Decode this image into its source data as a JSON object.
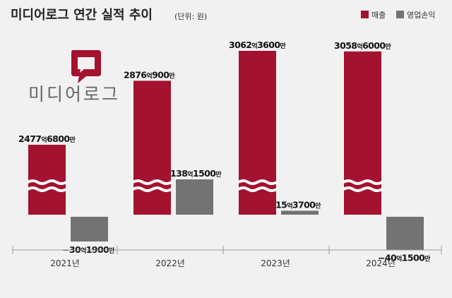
{
  "header": {
    "title": "미디어로그 연간 실적 추이",
    "unit": "(단위: 원)"
  },
  "legend": {
    "items": [
      {
        "label": "매출",
        "color": "#a3122e"
      },
      {
        "label": "영업손익",
        "color": "#737373"
      }
    ],
    "placement": "top-right"
  },
  "logo": {
    "text": "미디어로그",
    "mark": "speech-bubble-icon",
    "color": "#a3122e"
  },
  "colors": {
    "revenue": "#a3122e",
    "operating": "#737373",
    "background": "#f1f1f1",
    "axis": "#9a9a9a"
  },
  "chart_data": {
    "type": "bar",
    "title": "미디어로그 연간 실적 추이",
    "subtitle": "(단위: 원)",
    "categories": [
      "2021년",
      "2022년",
      "2023년",
      "2024년"
    ],
    "axis_break": true,
    "grid": false,
    "series": [
      {
        "name": "매출",
        "values": [
          247768000000,
          287609000000,
          306236000000,
          305860000000
        ],
        "labels": [
          {
            "num": "2477",
            "u1": "억",
            "num2": "6800",
            "u2": "만"
          },
          {
            "num": "2876",
            "u1": "억",
            "num2": "900",
            "u2": "만"
          },
          {
            "num": "3062",
            "u1": "억",
            "num2": "3600",
            "u2": "만"
          },
          {
            "num": "3058",
            "u1": "억",
            "num2": "6000",
            "u2": "만"
          }
        ]
      },
      {
        "name": "영업손익",
        "values": [
          -3019000000,
          13815000000,
          1537000000,
          -4015000000
        ],
        "labels": [
          {
            "num": "−30",
            "u1": "억",
            "num2": "1900",
            "u2": "만"
          },
          {
            "num": "138",
            "u1": "억",
            "num2": "1500",
            "u2": "만"
          },
          {
            "num": "15",
            "u1": "억",
            "num2": "3700",
            "u2": "만"
          },
          {
            "num": "−40",
            "u1": "억",
            "num2": "1500",
            "u2": "만"
          }
        ]
      }
    ]
  }
}
